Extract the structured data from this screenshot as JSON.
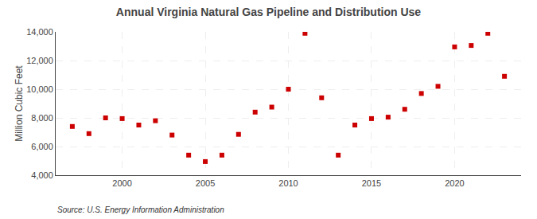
{
  "chart_data": {
    "type": "scatter",
    "title": "Annual Virginia Natural Gas Pipeline and Distribution Use",
    "ylabel": "Million Cubic Feet",
    "annotations": [
      "Source: U.S. Energy Information Administration"
    ],
    "x": [
      1997,
      1998,
      1999,
      2000,
      2001,
      2002,
      2003,
      2004,
      2005,
      2006,
      2007,
      2008,
      2009,
      2010,
      2011,
      2012,
      2013,
      2014,
      2015,
      2016,
      2017,
      2018,
      2019,
      2020,
      2021,
      2022,
      2023
    ],
    "values": [
      7400,
      6900,
      8000,
      7950,
      7500,
      7800,
      6800,
      5400,
      4950,
      5400,
      6850,
      8400,
      8750,
      10000,
      13900,
      9400,
      5400,
      7500,
      7950,
      8050,
      8600,
      9700,
      10200,
      12950,
      13050,
      13900,
      10900
    ],
    "color": "#cc0000",
    "marker": "square",
    "xlim": [
      1996,
      2024
    ],
    "xticks": [
      2000,
      2005,
      2010,
      2015,
      2020
    ],
    "ylim": [
      4000,
      14000
    ],
    "yticks": [
      {
        "value": 4000,
        "label": "4,000"
      },
      {
        "value": 6000,
        "label": "6,000"
      },
      {
        "value": 8000,
        "label": "8,000"
      },
      {
        "value": 10000,
        "label": "10,000"
      },
      {
        "value": 12000,
        "label": "12,000"
      },
      {
        "value": 14000,
        "label": "14,000"
      }
    ],
    "grid": true
  }
}
